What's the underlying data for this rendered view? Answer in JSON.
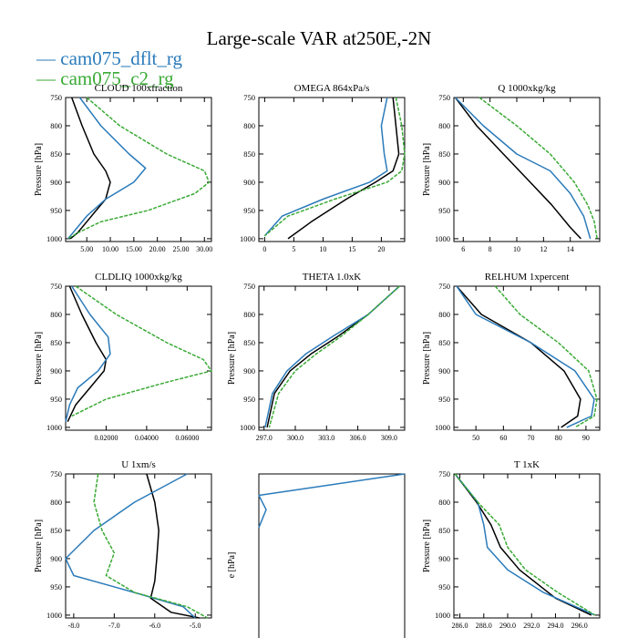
{
  "title": "Large-scale VAR at250E,-2N",
  "legend": [
    "cam075_dflt_rg",
    "cam075_c2_rg"
  ],
  "colors": {
    "black": "#000000",
    "blue": "#2b7bba",
    "green": "#3aaa35"
  },
  "chart_data": [
    {
      "type": "line",
      "title": "CLOUD 100xfraction",
      "ylabel": "Pressure [hPa]",
      "xlim": [
        0.5,
        31.5
      ],
      "ylim": [
        1005,
        750
      ],
      "xticks": [
        "5.00",
        "10.00",
        "15.00",
        "20.00",
        "25.00",
        "30.00"
      ],
      "xtick_values": [
        5,
        10,
        15,
        20,
        25,
        30
      ],
      "yticks": [
        750,
        800,
        850,
        900,
        950,
        1000
      ],
      "series": [
        {
          "color": "black",
          "x": [
            1.8,
            4,
            6.5,
            9,
            10,
            9,
            7,
            5,
            3,
            1.5
          ],
          "y": [
            750,
            800,
            850,
            880,
            900,
            930,
            950,
            970,
            990,
            1000
          ]
        },
        {
          "color": "blue",
          "x": [
            3.5,
            8,
            14,
            17.5,
            15,
            9,
            5,
            3,
            1.5,
            1
          ],
          "y": [
            750,
            800,
            850,
            875,
            900,
            930,
            960,
            980,
            995,
            1000
          ]
        },
        {
          "color": "green",
          "dashed": true,
          "x": [
            5,
            12,
            22,
            30,
            31,
            28,
            18,
            8,
            3,
            1
          ],
          "y": [
            750,
            800,
            850,
            880,
            900,
            920,
            950,
            970,
            990,
            1000
          ]
        }
      ]
    },
    {
      "type": "line",
      "title": "OMEGA 864xPa/s",
      "ylabel": "",
      "xlim": [
        -1,
        24
      ],
      "ylim": [
        1005,
        750
      ],
      "xticks": [
        "0",
        "5",
        "10",
        "15",
        "20"
      ],
      "xtick_values": [
        0,
        5,
        10,
        15,
        20
      ],
      "yticks": [
        750,
        800,
        850,
        900,
        950,
        1000
      ],
      "series": [
        {
          "color": "black",
          "x": [
            22,
            22.5,
            23,
            22,
            19,
            14,
            8,
            4
          ],
          "y": [
            750,
            800,
            850,
            880,
            900,
            930,
            970,
            1000
          ]
        },
        {
          "color": "blue",
          "x": [
            21,
            20,
            20.5,
            21,
            18,
            10,
            3,
            0
          ],
          "y": [
            750,
            800,
            850,
            880,
            900,
            930,
            960,
            995
          ]
        },
        {
          "color": "green",
          "dashed": true,
          "x": [
            22.5,
            23.5,
            24,
            23.5,
            21,
            12,
            4,
            0
          ],
          "y": [
            750,
            800,
            850,
            880,
            900,
            930,
            960,
            995
          ]
        }
      ]
    },
    {
      "type": "line",
      "title": "Q 1000xkg/kg",
      "ylabel": "Pressure [hPa]",
      "xlim": [
        5.3,
        16.2
      ],
      "ylim": [
        1005,
        750
      ],
      "xticks": [
        "6",
        "8",
        "10",
        "12",
        "14"
      ],
      "xtick_values": [
        6,
        8,
        10,
        12,
        14
      ],
      "yticks": [
        750,
        800,
        850,
        900,
        950,
        1000
      ],
      "series": [
        {
          "color": "black",
          "x": [
            5.4,
            7,
            9,
            11,
            12.6,
            14,
            14.8
          ],
          "y": [
            750,
            800,
            850,
            900,
            940,
            980,
            1000
          ]
        },
        {
          "color": "blue",
          "x": [
            5.4,
            7.5,
            10,
            12.5,
            14,
            15,
            15.5
          ],
          "y": [
            750,
            800,
            850,
            880,
            920,
            960,
            1000
          ]
        },
        {
          "color": "green",
          "dashed": true,
          "x": [
            7.2,
            10,
            12.5,
            14.3,
            15.3,
            15.8,
            16
          ],
          "y": [
            750,
            800,
            850,
            900,
            940,
            970,
            1000
          ]
        }
      ]
    },
    {
      "type": "line",
      "title": "CLDLIQ 1000xkg/kg",
      "ylabel": "Pressure [hPa]",
      "xlim": [
        0,
        0.072
      ],
      "ylim": [
        1005,
        750
      ],
      "xticks": [
        "0.02000",
        "0.04000",
        "0.06000"
      ],
      "xtick_values": [
        0.02,
        0.04,
        0.06
      ],
      "yticks": [
        750,
        800,
        850,
        900,
        950,
        1000
      ],
      "series": [
        {
          "color": "black",
          "x": [
            0.002,
            0.008,
            0.015,
            0.02,
            0.019,
            0.012,
            0.005,
            0.001
          ],
          "y": [
            750,
            800,
            850,
            880,
            900,
            930,
            960,
            990
          ]
        },
        {
          "color": "blue",
          "x": [
            0.003,
            0.012,
            0.021,
            0.022,
            0.016,
            0.006,
            0.002,
            0
          ],
          "y": [
            750,
            800,
            840,
            870,
            900,
            930,
            960,
            990
          ]
        },
        {
          "color": "green",
          "dashed": true,
          "x": [
            0.005,
            0.025,
            0.05,
            0.068,
            0.072,
            0.05,
            0.02,
            0.003
          ],
          "y": [
            750,
            800,
            850,
            880,
            900,
            920,
            950,
            980
          ]
        }
      ]
    },
    {
      "type": "line",
      "title": "THETA 1.0xK",
      "ylabel": "Pressure [hPa]",
      "xlim": [
        296.5,
        310.5
      ],
      "ylim": [
        1005,
        750
      ],
      "xticks": [
        "297.0",
        "300.0",
        "303.0",
        "306.0",
        "309.0"
      ],
      "xtick_values": [
        297,
        300,
        303,
        306,
        309
      ],
      "yticks": [
        750,
        800,
        850,
        900,
        950,
        1000
      ],
      "series": [
        {
          "color": "black",
          "x": [
            310,
            307,
            304,
            301.5,
            299.5,
            298,
            297.3
          ],
          "y": [
            750,
            800,
            840,
            870,
            900,
            940,
            1000
          ]
        },
        {
          "color": "blue",
          "x": [
            310,
            307,
            303.5,
            301,
            299.2,
            297.8,
            297.1
          ],
          "y": [
            750,
            800,
            840,
            870,
            900,
            940,
            1000
          ]
        },
        {
          "color": "green",
          "dashed": true,
          "x": [
            310,
            307,
            304.3,
            302,
            300,
            298.4,
            297.5
          ],
          "y": [
            750,
            800,
            840,
            870,
            900,
            940,
            1000
          ]
        }
      ]
    },
    {
      "type": "line",
      "title": "RELHUM 1xpercent",
      "ylabel": "Pressure [hPa]",
      "xlim": [
        42,
        95
      ],
      "ylim": [
        1005,
        750
      ],
      "xticks": [
        "50",
        "60",
        "70",
        "80",
        "90"
      ],
      "xtick_values": [
        50,
        60,
        70,
        80,
        90
      ],
      "yticks": [
        750,
        800,
        850,
        900,
        950,
        1000
      ],
      "series": [
        {
          "color": "black",
          "x": [
            43,
            52,
            70,
            82,
            88,
            87,
            81
          ],
          "y": [
            750,
            800,
            850,
            900,
            950,
            980,
            1000
          ]
        },
        {
          "color": "blue",
          "x": [
            43,
            50,
            70,
            86,
            93,
            92,
            83
          ],
          "y": [
            750,
            800,
            850,
            900,
            950,
            980,
            1000
          ]
        },
        {
          "color": "green",
          "dashed": true,
          "x": [
            57,
            66,
            80,
            91,
            94,
            93,
            86
          ],
          "y": [
            750,
            800,
            850,
            900,
            950,
            980,
            1000
          ]
        }
      ]
    },
    {
      "type": "line",
      "title": "U 1xm/s",
      "ylabel": "Pressure [hPa]",
      "xlim": [
        -8.2,
        -4.6
      ],
      "ylim": [
        1005,
        750
      ],
      "xticks": [
        "-8.0",
        "-7.0",
        "-6.0",
        "-5.0"
      ],
      "xtick_values": [
        -8,
        -7,
        -6,
        -5
      ],
      "yticks": [
        750,
        800,
        850,
        900,
        950,
        1000
      ],
      "series": [
        {
          "color": "black",
          "x": [
            -6.2,
            -6,
            -5.9,
            -5.95,
            -6,
            -6.1,
            -5.6,
            -4.9
          ],
          "y": [
            750,
            800,
            850,
            900,
            940,
            970,
            995,
            1005
          ]
        },
        {
          "color": "blue",
          "x": [
            -5.2,
            -6.5,
            -7.5,
            -8.2,
            -8,
            -6.5,
            -5.3,
            -5
          ],
          "y": [
            750,
            800,
            850,
            900,
            930,
            960,
            985,
            1005
          ]
        },
        {
          "color": "green",
          "dashed": true,
          "x": [
            -7.4,
            -7.5,
            -7.3,
            -7,
            -7.2,
            -6.5,
            -5.2,
            -4.7
          ],
          "y": [
            750,
            800,
            850,
            890,
            930,
            960,
            985,
            1005
          ]
        }
      ]
    },
    {
      "type": "line",
      "title": "",
      "ylabel": "e [hPa]",
      "xlim": [
        0,
        1
      ],
      "ylim": [
        1005,
        750
      ],
      "xticks": [],
      "xtick_values": [],
      "yticks": [],
      "series": [
        {
          "color": "blue",
          "x": [
            1,
            0,
            0.05,
            0
          ],
          "y": [
            750,
            780,
            800,
            825
          ]
        }
      ]
    },
    {
      "type": "line",
      "title": "T 1xK",
      "ylabel": "Pressure [hPa]",
      "xlim": [
        285.5,
        297.7
      ],
      "ylim": [
        1005,
        750
      ],
      "xticks": [
        "286.0",
        "288.0",
        "290.0",
        "292.0",
        "294.0",
        "296.0"
      ],
      "xtick_values": [
        286,
        288,
        290,
        292,
        294,
        296
      ],
      "yticks": [
        750,
        800,
        850,
        900,
        950,
        1000
      ],
      "series": [
        {
          "color": "black",
          "x": [
            285.6,
            287.4,
            288.6,
            289.4,
            291,
            294,
            297
          ],
          "y": [
            750,
            800,
            840,
            880,
            920,
            970,
            1000
          ]
        },
        {
          "color": "blue",
          "x": [
            285.6,
            287.5,
            288,
            288.3,
            290,
            293,
            297.3
          ],
          "y": [
            750,
            800,
            840,
            880,
            920,
            960,
            1000
          ]
        },
        {
          "color": "green",
          "dashed": true,
          "x": [
            285.6,
            287.5,
            289.3,
            290,
            291.5,
            294.2,
            297.3
          ],
          "y": [
            750,
            800,
            840,
            880,
            920,
            960,
            1000
          ]
        }
      ]
    }
  ]
}
